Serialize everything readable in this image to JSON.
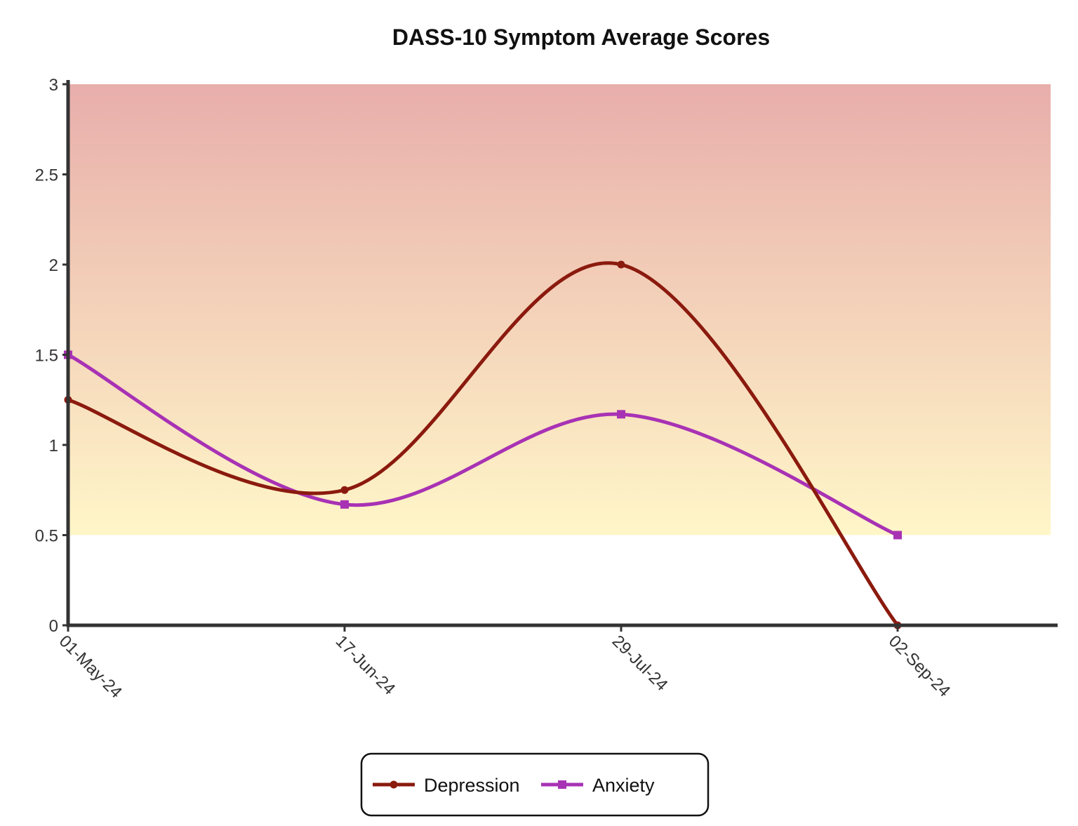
{
  "chart_data": {
    "type": "line",
    "title": "DASS-10 Symptom Average Scores",
    "xlabel": "",
    "ylabel": "",
    "categories": [
      "01-May-24",
      "17-Jun-24",
      "29-Jul-24",
      "02-Sep-24"
    ],
    "ylim": [
      0,
      3
    ],
    "yticks": [
      "0",
      "0.5",
      "1",
      "1.5",
      "2",
      "2.5",
      "3"
    ],
    "background_band": {
      "from": 0.5,
      "to": 3,
      "color_top": "#e8aeab",
      "color_bottom": "#fff6c8"
    },
    "grid": false,
    "legend_position": "bottom-center",
    "series": [
      {
        "name": "Depression",
        "values": [
          1.25,
          0.75,
          2.0,
          0.0
        ],
        "color": "#8b1a0e",
        "marker": "circle"
      },
      {
        "name": "Anxiety",
        "values": [
          1.5,
          0.67,
          1.17,
          0.5
        ],
        "color": "#a832b4",
        "marker": "square"
      }
    ]
  }
}
